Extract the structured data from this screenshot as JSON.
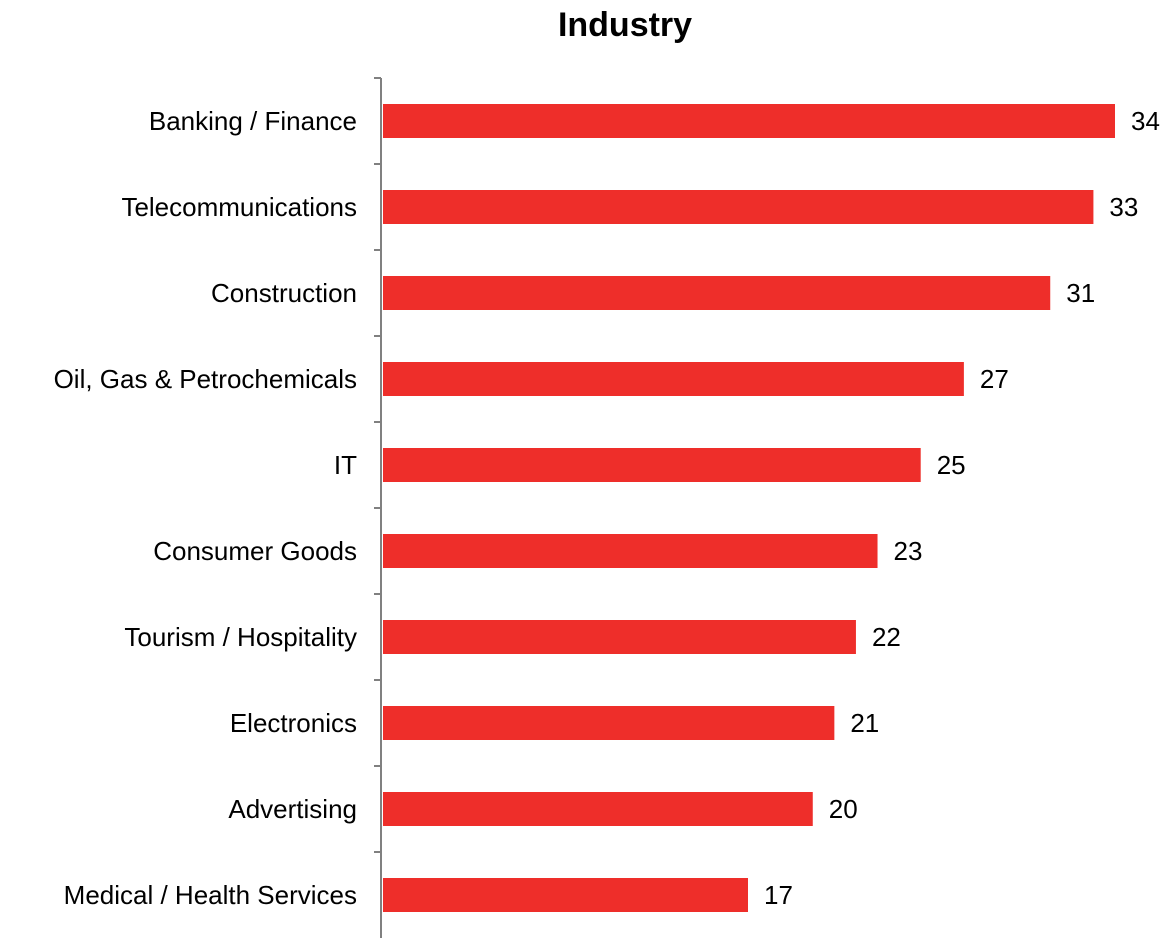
{
  "chart_data": {
    "type": "bar",
    "orientation": "horizontal",
    "title": "Industry",
    "categories": [
      "Banking / Finance",
      "Telecommunications",
      "Construction",
      "Oil, Gas & Petrochemicals",
      "IT",
      "Consumer Goods",
      "Tourism / Hospitality",
      "Electronics",
      "Advertising",
      "Medical / Health Services"
    ],
    "values": [
      34,
      33,
      31,
      27,
      25,
      23,
      22,
      21,
      20,
      17
    ],
    "xlim": [
      0,
      34
    ],
    "grid": false,
    "legend": "none",
    "colors": {
      "bar": "#ee2e2a",
      "axis": "#808080",
      "text": "#000000"
    }
  }
}
